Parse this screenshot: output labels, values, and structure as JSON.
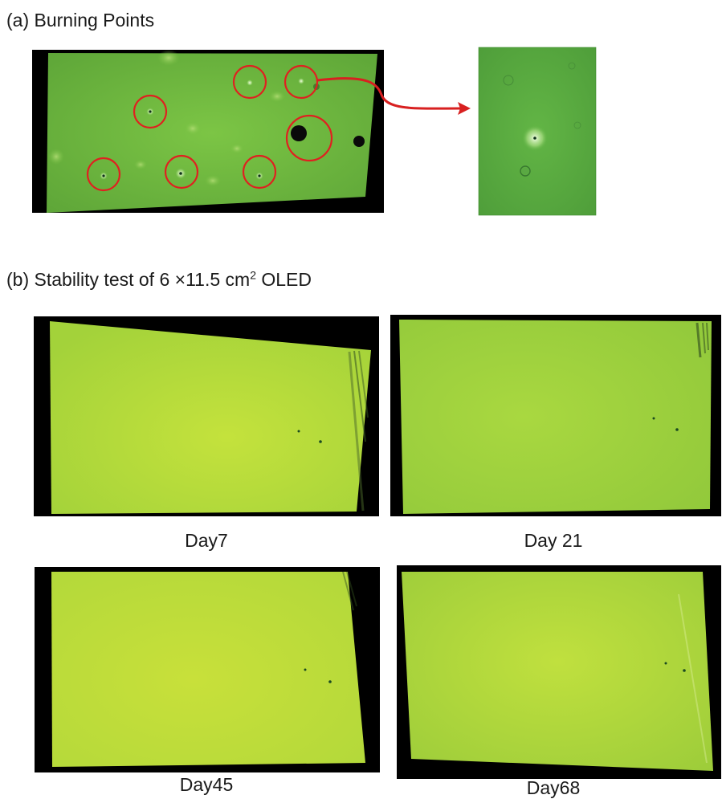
{
  "section_a": {
    "heading": "(a) Burning Points"
  },
  "section_b": {
    "heading_prefix": "(b) Stability test of 6 ×11.5 cm",
    "heading_sup": "2",
    "heading_suffix": " OLED"
  },
  "panels": [
    {
      "caption": "Day7"
    },
    {
      "caption": "Day 21"
    },
    {
      "caption": "Day45"
    },
    {
      "caption": "Day68"
    }
  ],
  "colors": {
    "burning_green": "#66b43a",
    "oled_yellow_green": "#a8d63a",
    "marker_red": "#e02020",
    "frame_black": "#000000"
  }
}
